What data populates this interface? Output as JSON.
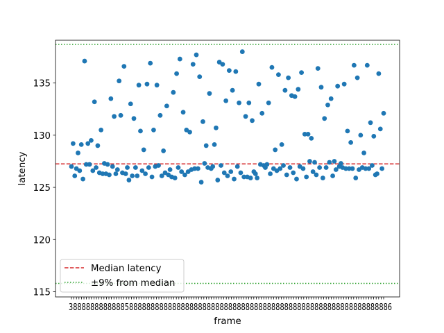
{
  "chart_data": {
    "type": "scatter",
    "xlabel": "frame",
    "ylabel": "latency",
    "ylim": [
      114.5,
      139.1
    ],
    "y_ticks": [
      115,
      120,
      125,
      130,
      135
    ],
    "x_tick_labels_note": "overlapping illegible frame ids",
    "x_tick_count": 126,
    "median": 127.25,
    "band_upper": 138.7,
    "band_lower": 115.8,
    "legend": {
      "position": "lower-left",
      "entries": [
        {
          "label": "Median latency",
          "style": "dashed",
          "color": "#d62728"
        },
        {
          "label": "±9% from median",
          "style": "dotted",
          "color": "#2ca02c"
        }
      ]
    },
    "marker_color": "#1f77b4",
    "series": [
      {
        "values": [
          [
            0,
            127.0
          ],
          [
            1,
            129.2
          ],
          [
            2,
            126.1
          ],
          [
            3,
            126.8
          ],
          [
            4,
            128.3
          ],
          [
            5,
            126.6
          ],
          [
            6,
            129.1
          ],
          [
            7,
            125.8
          ],
          [
            8,
            137.1
          ],
          [
            9,
            127.2
          ],
          [
            10,
            129.2
          ],
          [
            11,
            127.2
          ],
          [
            12,
            129.5
          ],
          [
            13,
            126.6
          ],
          [
            14,
            133.2
          ],
          [
            15,
            126.9
          ],
          [
            16,
            129.0
          ],
          [
            17,
            126.4
          ],
          [
            18,
            130.5
          ],
          [
            19,
            126.3
          ],
          [
            20,
            127.3
          ],
          [
            21,
            126.3
          ],
          [
            22,
            127.2
          ],
          [
            23,
            126.2
          ],
          [
            24,
            133.5
          ],
          [
            25,
            127.0
          ],
          [
            26,
            131.8
          ],
          [
            27,
            126.3
          ],
          [
            28,
            126.7
          ],
          [
            29,
            135.2
          ],
          [
            30,
            131.9
          ],
          [
            31,
            126.4
          ],
          [
            32,
            136.6
          ],
          [
            33,
            126.3
          ],
          [
            34,
            126.9
          ],
          [
            35,
            125.7
          ],
          [
            36,
            133.0
          ],
          [
            37,
            126.1
          ],
          [
            38,
            131.6
          ],
          [
            39,
            126.9
          ],
          [
            40,
            126.1
          ],
          [
            41,
            134.8
          ],
          [
            42,
            130.4
          ],
          [
            43,
            126.6
          ],
          [
            44,
            128.6
          ],
          [
            45,
            126.3
          ],
          [
            46,
            134.9
          ],
          [
            47,
            126.9
          ],
          [
            48,
            136.9
          ],
          [
            49,
            126.0
          ],
          [
            50,
            130.5
          ],
          [
            51,
            127.0
          ],
          [
            52,
            134.8
          ],
          [
            53,
            127.1
          ],
          [
            54,
            131.9
          ],
          [
            55,
            126.1
          ],
          [
            56,
            128.5
          ],
          [
            57,
            126.4
          ],
          [
            58,
            132.8
          ],
          [
            59,
            126.2
          ],
          [
            60,
            126.7
          ],
          [
            61,
            126.0
          ],
          [
            62,
            134.1
          ],
          [
            63,
            125.9
          ],
          [
            64,
            135.9
          ],
          [
            65,
            126.9
          ],
          [
            66,
            137.3
          ],
          [
            67,
            126.5
          ],
          [
            68,
            132.2
          ],
          [
            69,
            126.2
          ],
          [
            70,
            130.5
          ],
          [
            71,
            126.5
          ],
          [
            72,
            130.3
          ],
          [
            73,
            126.7
          ],
          [
            74,
            136.8
          ],
          [
            75,
            126.8
          ],
          [
            76,
            137.7
          ],
          [
            77,
            126.8
          ],
          [
            78,
            135.6
          ],
          [
            79,
            125.5
          ],
          [
            80,
            131.3
          ],
          [
            81,
            127.3
          ],
          [
            82,
            129.0
          ],
          [
            83,
            126.9
          ],
          [
            84,
            134.0
          ],
          [
            85,
            126.8
          ],
          [
            86,
            127.0
          ],
          [
            87,
            129.1
          ],
          [
            88,
            130.7
          ],
          [
            89,
            125.7
          ],
          [
            90,
            137.0
          ],
          [
            91,
            127.1
          ],
          [
            92,
            136.8
          ],
          [
            93,
            126.4
          ],
          [
            94,
            133.3
          ],
          [
            95,
            126.1
          ],
          [
            96,
            136.2
          ],
          [
            97,
            126.5
          ],
          [
            98,
            134.3
          ],
          [
            99,
            125.8
          ],
          [
            100,
            136.1
          ],
          [
            101,
            127.0
          ],
          [
            102,
            133.1
          ],
          [
            103,
            126.4
          ],
          [
            104,
            138.0
          ],
          [
            105,
            126.0
          ],
          [
            106,
            131.8
          ],
          [
            107,
            126.0
          ],
          [
            108,
            133.1
          ],
          [
            109,
            125.9
          ],
          [
            110,
            131.4
          ],
          [
            111,
            126.5
          ],
          [
            112,
            126.3
          ],
          [
            113,
            125.9
          ],
          [
            114,
            134.9
          ],
          [
            115,
            127.2
          ],
          [
            116,
            132.1
          ],
          [
            117,
            127.1
          ],
          [
            118,
            126.9
          ],
          [
            119,
            127.2
          ],
          [
            120,
            133.1
          ],
          [
            121,
            126.3
          ],
          [
            122,
            136.5
          ],
          [
            123,
            126.8
          ],
          [
            124,
            128.6
          ],
          [
            125,
            126.6
          ]
        ]
      },
      {
        "values": [
          [
            126,
            135.8
          ],
          [
            127,
            126.8
          ],
          [
            128,
            129.1
          ],
          [
            129,
            127.1
          ],
          [
            130,
            134.3
          ],
          [
            131,
            126.2
          ],
          [
            132,
            135.5
          ],
          [
            133,
            126.9
          ],
          [
            134,
            133.8
          ],
          [
            135,
            126.4
          ],
          [
            136,
            133.7
          ],
          [
            137,
            125.8
          ],
          [
            138,
            134.4
          ],
          [
            139,
            127.0
          ],
          [
            140,
            136.0
          ],
          [
            141,
            126.8
          ],
          [
            142,
            130.1
          ],
          [
            143,
            126.0
          ],
          [
            144,
            130.1
          ],
          [
            145,
            127.5
          ],
          [
            146,
            129.7
          ],
          [
            147,
            126.5
          ],
          [
            148,
            127.4
          ],
          [
            149,
            126.2
          ],
          [
            150,
            136.4
          ],
          [
            151,
            126.9
          ],
          [
            152,
            134.6
          ],
          [
            153,
            125.9
          ],
          [
            154,
            131.6
          ],
          [
            155,
            126.9
          ],
          [
            156,
            132.9
          ],
          [
            157,
            127.4
          ],
          [
            158,
            133.5
          ],
          [
            159,
            126.1
          ],
          [
            160,
            127.5
          ],
          [
            161,
            126.7
          ],
          [
            162,
            134.7
          ],
          [
            163,
            127.0
          ],
          [
            164,
            127.3
          ],
          [
            165,
            126.9
          ],
          [
            166,
            134.9
          ],
          [
            167,
            126.8
          ],
          [
            168,
            130.4
          ],
          [
            169,
            126.8
          ],
          [
            170,
            129.3
          ],
          [
            171,
            126.8
          ],
          [
            172,
            136.7
          ],
          [
            173,
            125.9
          ],
          [
            174,
            135.5
          ],
          [
            175,
            126.7
          ],
          [
            176,
            130.0
          ],
          [
            177,
            126.9
          ],
          [
            178,
            128.3
          ],
          [
            179,
            126.8
          ],
          [
            180,
            136.7
          ],
          [
            181,
            126.8
          ],
          [
            182,
            131.2
          ],
          [
            183,
            127.1
          ],
          [
            184,
            129.9
          ],
          [
            185,
            126.2
          ],
          [
            186,
            126.3
          ],
          [
            187,
            135.9
          ],
          [
            188,
            130.6
          ],
          [
            189,
            126.8
          ],
          [
            190,
            132.1
          ]
        ]
      }
    ]
  }
}
